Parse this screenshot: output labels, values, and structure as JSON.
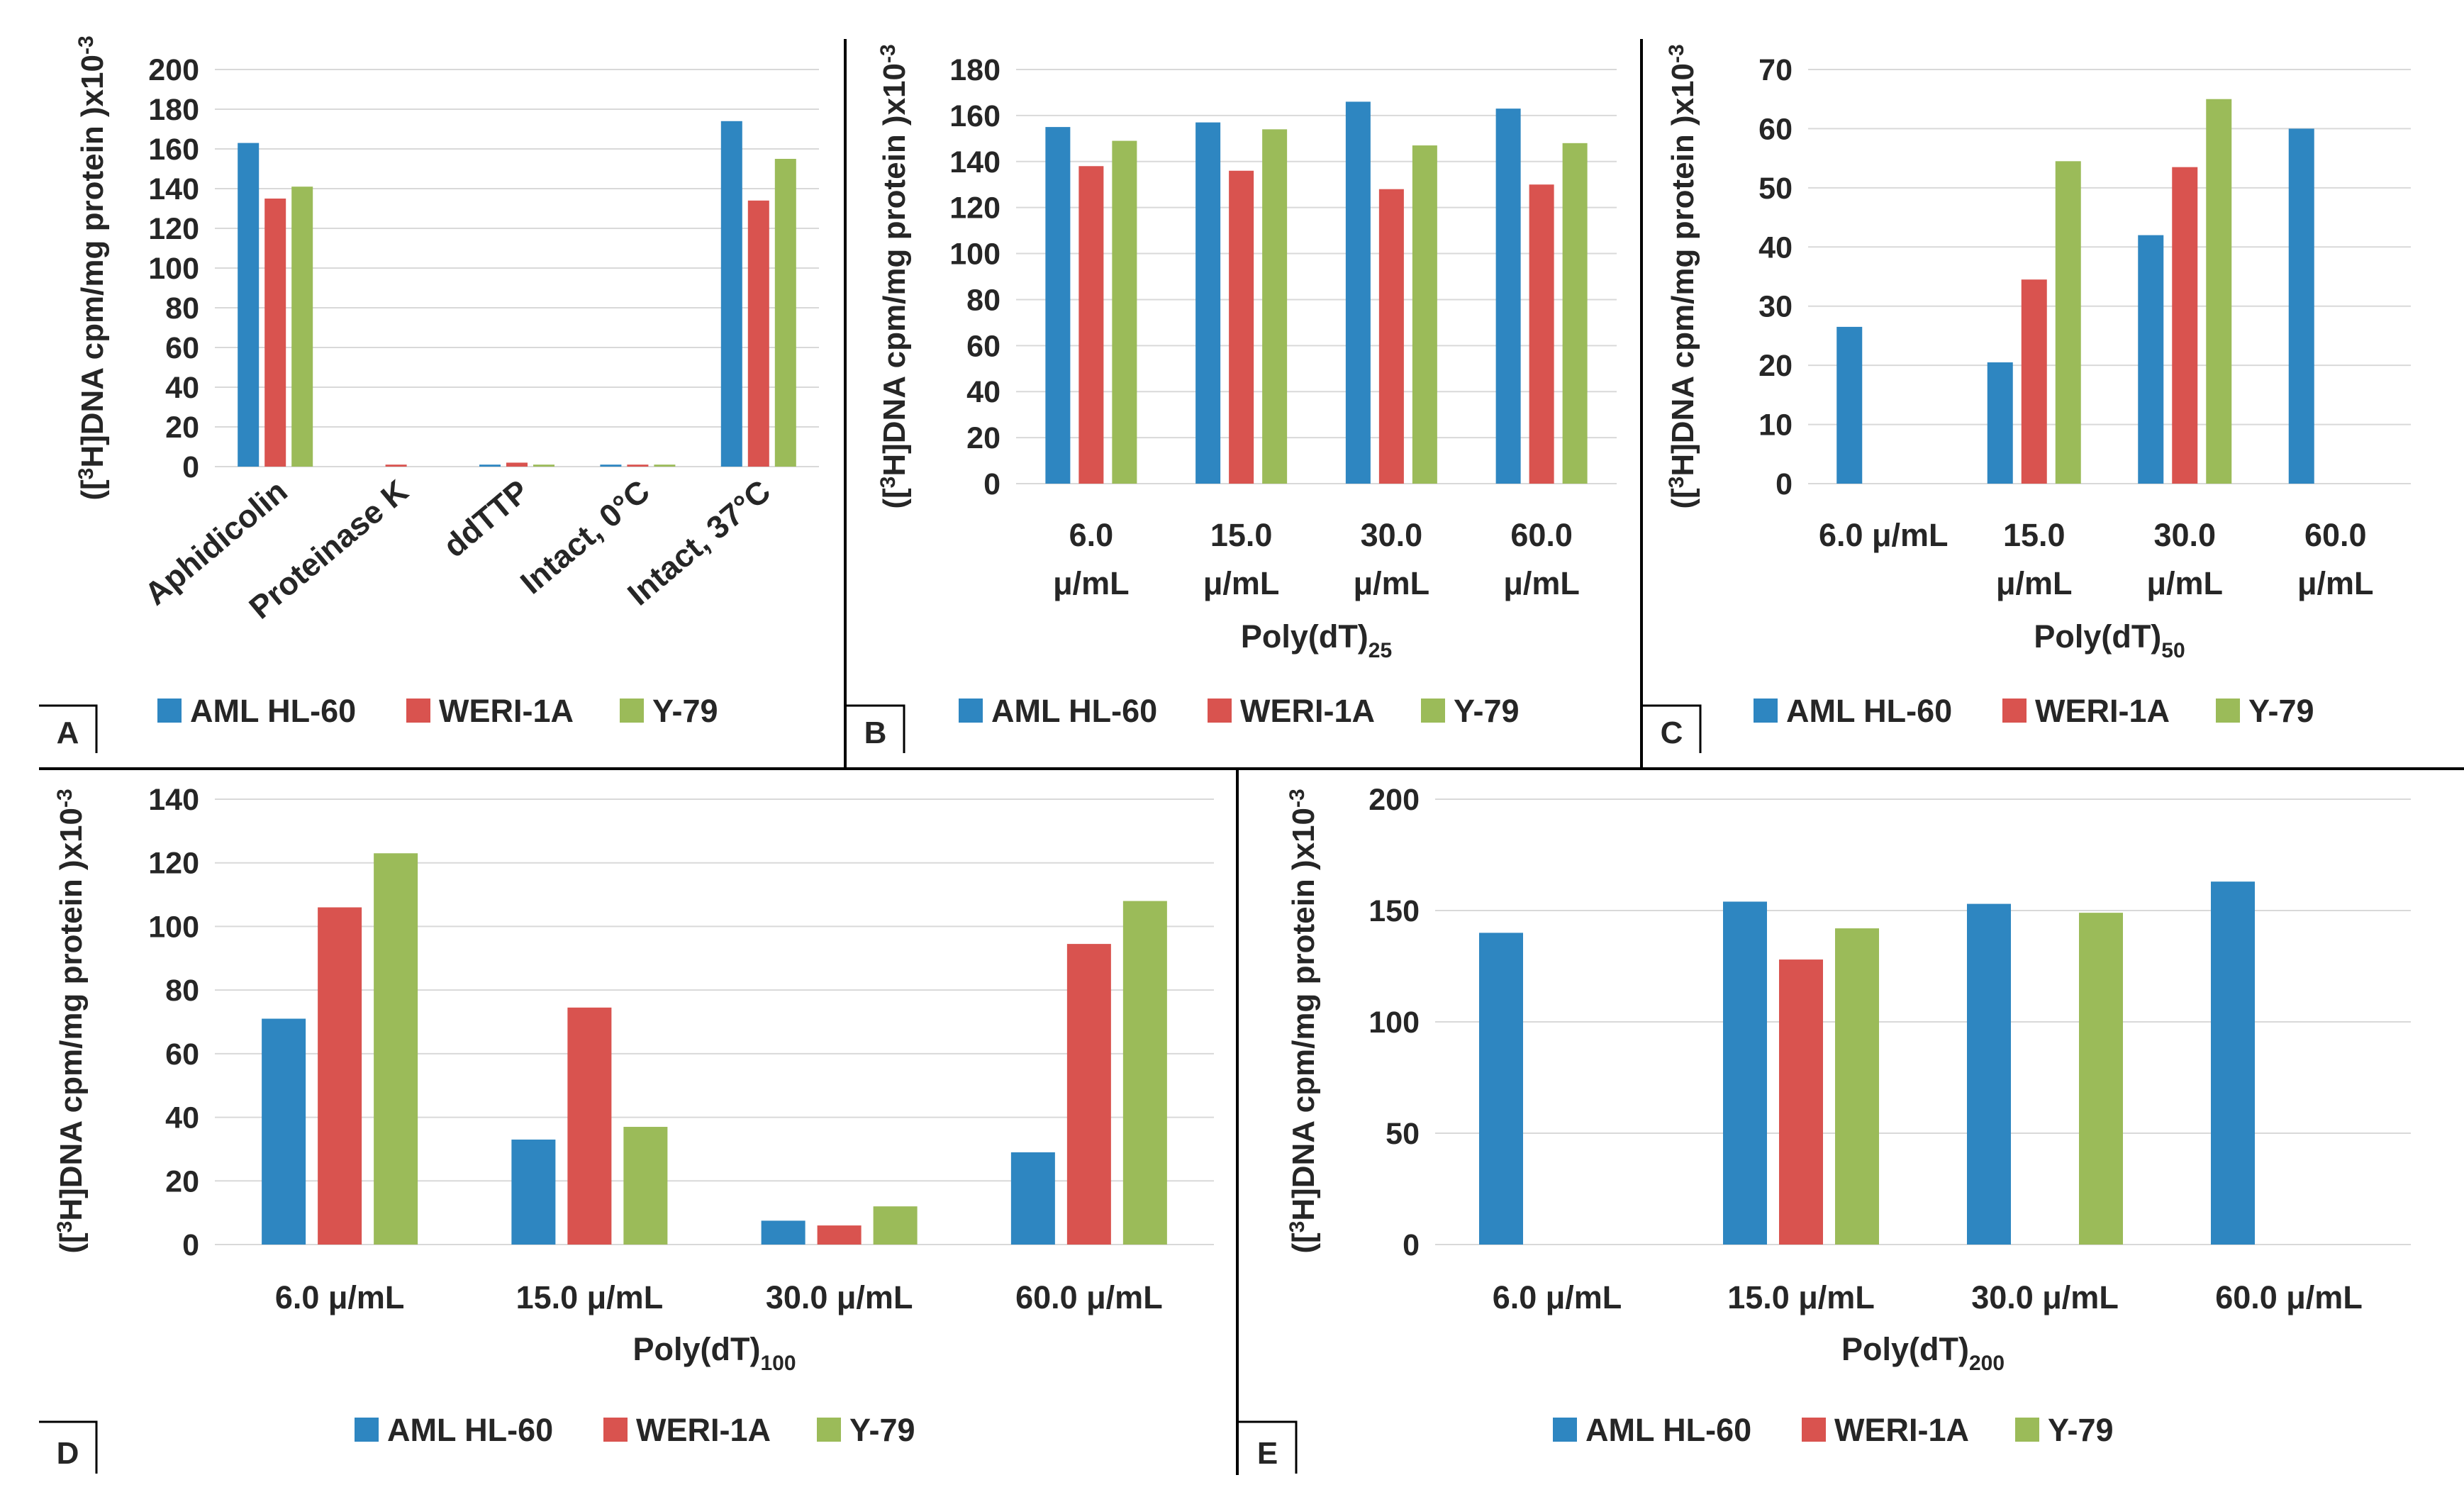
{
  "colors": {
    "AML HL-60": "#2E86C1",
    "WERI-1A": "#D9534F",
    "Y-79": "#9BBB59"
  },
  "chart_data": [
    {
      "type": "bar",
      "panel": "A",
      "ylabel": {
        "main": "([3H]DNA cpm/mg protein )x10-3",
        "pre": "([",
        "sup": "3",
        "mid": "H]DNA cpm/mg protein )x10",
        "sup2": "-3"
      },
      "xlabel": {
        "main": "",
        "sub": ""
      },
      "ylim": [
        0,
        200
      ],
      "yticks": [
        "0",
        "20",
        "40",
        "60",
        "80",
        "100",
        "120",
        "140",
        "160",
        "180",
        "200"
      ],
      "grid": true,
      "categories": [
        "Aphidicolin",
        "Proteinase K",
        "ddTTP",
        "Intact, 0°C",
        "Intact, 37°C"
      ],
      "category_lines": [
        [
          "Aphidicolin"
        ],
        [
          "Proteinase K"
        ],
        [
          "ddTTP"
        ],
        [
          "Intact, 0°C"
        ],
        [
          "Intact, 37°C"
        ]
      ],
      "series": [
        {
          "name": "AML HL-60",
          "values": [
            163,
            0,
            1,
            1,
            174
          ]
        },
        {
          "name": "WERI-1A",
          "values": [
            135,
            1,
            2,
            1,
            134
          ]
        },
        {
          "name": "Y-79",
          "values": [
            141,
            0,
            1,
            1,
            155
          ]
        }
      ],
      "legend": [
        "AML HL-60",
        "WERI-1A",
        "Y-79"
      ],
      "legend_position": "bottom"
    },
    {
      "type": "bar",
      "panel": "B",
      "ylabel": {
        "main": "([3H]DNA cpm/mg protein )x10-3",
        "pre": "([",
        "sup": "3",
        "mid": "H]DNA cpm/mg protein )x10",
        "sup2": "-3"
      },
      "xlabel": {
        "main": "Poly(dT)",
        "sub": "25"
      },
      "ylim": [
        0,
        180
      ],
      "yticks": [
        "0",
        "20",
        "40",
        "60",
        "80",
        "100",
        "120",
        "140",
        "160",
        "180"
      ],
      "grid": true,
      "categories": [
        "6.0 μ/mL",
        "15.0 μ/mL",
        "30.0 μ/mL",
        "60.0 μ/mL"
      ],
      "category_lines": [
        [
          "6.0",
          "μ/mL"
        ],
        [
          "15.0",
          "μ/mL"
        ],
        [
          "30.0",
          "μ/mL"
        ],
        [
          "60.0",
          "μ/mL"
        ]
      ],
      "series": [
        {
          "name": "AML HL-60",
          "values": [
            155,
            157,
            166,
            163
          ]
        },
        {
          "name": "WERI-1A",
          "values": [
            138,
            136,
            128,
            130
          ]
        },
        {
          "name": "Y-79",
          "values": [
            149,
            154,
            147,
            148
          ]
        }
      ],
      "legend": [
        "AML HL-60",
        "WERI-1A",
        "Y-79"
      ],
      "legend_position": "bottom"
    },
    {
      "type": "bar",
      "panel": "C",
      "ylabel": {
        "main": "([3H]DNA cpm/mg protein )x10-3",
        "pre": "([",
        "sup": "3",
        "mid": "H]DNA cpm/mg protein )x10",
        "sup2": "-3"
      },
      "xlabel": {
        "main": "Poly(dT)",
        "sub": "50"
      },
      "ylim": [
        0,
        70
      ],
      "yticks": [
        "0",
        "10",
        "20",
        "30",
        "40",
        "50",
        "60",
        "70"
      ],
      "grid": true,
      "categories": [
        "6.0 μ/mL",
        "15.0 μ/mL",
        "30.0 μ/mL",
        "60.0 μ/mL"
      ],
      "category_lines": [
        [
          "6.0 μ/mL"
        ],
        [
          "15.0",
          "μ/mL"
        ],
        [
          "30.0",
          "μ/mL"
        ],
        [
          "60.0",
          "μ/mL"
        ]
      ],
      "series": [
        {
          "name": "AML HL-60",
          "values": [
            26.5,
            20.5,
            42,
            60
          ]
        },
        {
          "name": "WERI-1A",
          "values": [
            null,
            34.5,
            53.5,
            null
          ]
        },
        {
          "name": "Y-79",
          "values": [
            null,
            54.5,
            65,
            null
          ]
        }
      ],
      "legend": [
        "AML HL-60",
        "WERI-1A",
        "Y-79"
      ],
      "legend_position": "bottom"
    },
    {
      "type": "bar",
      "panel": "D",
      "ylabel": {
        "main": "([3H]DNA cpm/mg protein )x10-3",
        "pre": "([",
        "sup": "3",
        "mid": "H]DNA cpm/mg protein )x10",
        "sup2": "-3"
      },
      "xlabel": {
        "main": "Poly(dT)",
        "sub": "100"
      },
      "ylim": [
        0,
        140
      ],
      "yticks": [
        "0",
        "20",
        "40",
        "60",
        "80",
        "100",
        "120",
        "140"
      ],
      "grid": true,
      "categories": [
        "6.0 μ/mL",
        "15.0 μ/mL",
        "30.0 μ/mL",
        "60.0 μ/mL"
      ],
      "category_lines": [
        [
          "6.0 μ/mL"
        ],
        [
          "15.0 μ/mL"
        ],
        [
          "30.0 μ/mL"
        ],
        [
          "60.0 μ/mL"
        ]
      ],
      "series": [
        {
          "name": "AML HL-60",
          "values": [
            71,
            33,
            7.5,
            29
          ]
        },
        {
          "name": "WERI-1A",
          "values": [
            106,
            74.5,
            6,
            94.5
          ]
        },
        {
          "name": "Y-79",
          "values": [
            123,
            37,
            12,
            108
          ]
        }
      ],
      "legend": [
        "AML HL-60",
        "WERI-1A",
        "Y-79"
      ],
      "legend_position": "bottom"
    },
    {
      "type": "bar",
      "panel": "E",
      "ylabel": {
        "main": "([3H]DNA cpm/mg protein )x10-3",
        "pre": "([",
        "sup": "3",
        "mid": "H]DNA cpm/mg protein )x10",
        "sup2": "-3"
      },
      "xlabel": {
        "main": "Poly(dT)",
        "sub": "200"
      },
      "ylim": [
        0,
        200
      ],
      "yticks": [
        "0",
        "50",
        "100",
        "150",
        "200"
      ],
      "grid": true,
      "categories": [
        "6.0 μ/mL",
        "15.0 μ/mL",
        "30.0 μ/mL",
        "60.0 μ/mL"
      ],
      "category_lines": [
        [
          "6.0 μ/mL"
        ],
        [
          "15.0 μ/mL"
        ],
        [
          "30.0 μ/mL"
        ],
        [
          "60.0 μ/mL"
        ]
      ],
      "series": [
        {
          "name": "AML HL-60",
          "values": [
            140,
            154,
            153,
            163
          ]
        },
        {
          "name": "WERI-1A",
          "values": [
            null,
            128,
            null,
            null
          ]
        },
        {
          "name": "Y-79",
          "values": [
            null,
            142,
            149,
            null
          ]
        }
      ],
      "legend": [
        "AML HL-60",
        "WERI-1A",
        "Y-79"
      ],
      "legend_position": "bottom"
    }
  ]
}
